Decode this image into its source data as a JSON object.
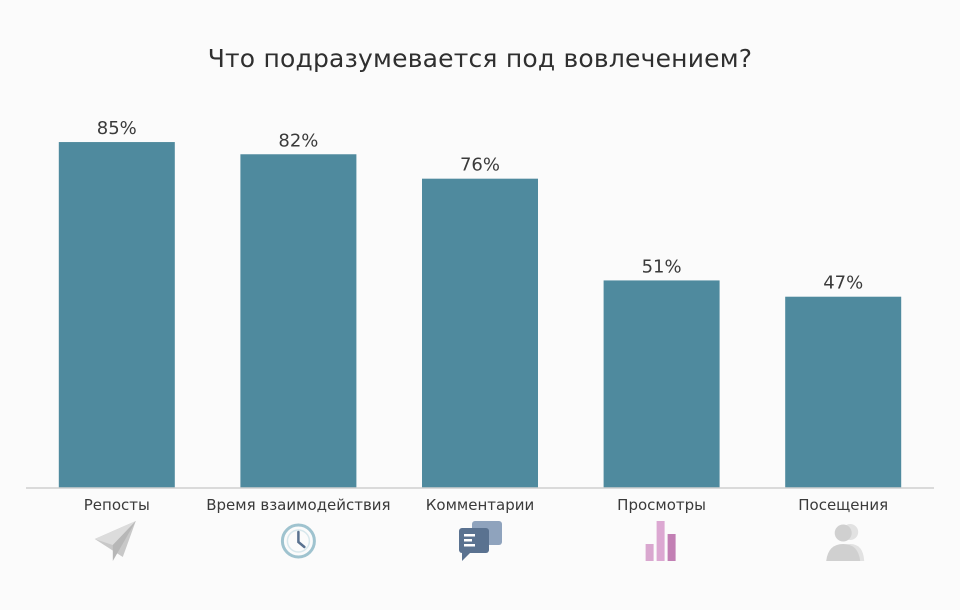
{
  "chart_data": {
    "type": "bar",
    "title": "Что подразумевается под вовлечением?",
    "categories": [
      "Репосты",
      "Время взаимодействия",
      "Комментарии",
      "Просмотры",
      "Посещения"
    ],
    "values": [
      85,
      82,
      76,
      51,
      47
    ],
    "value_labels": [
      "85%",
      "82%",
      "76%",
      "51%",
      "47%"
    ],
    "unit": "%",
    "ylim": [
      0,
      100
    ],
    "grid": false,
    "legend": "none",
    "bar_color": "#4f8a9e",
    "icons": [
      "paper-plane-icon",
      "clock-icon",
      "chat-bubbles-icon",
      "bar-chart-icon",
      "user-icon"
    ],
    "icon_colors": [
      "#c8c8c8",
      "#9fc3cf",
      "#5a7290",
      "#c27fb4",
      "#d0d0d0"
    ]
  }
}
